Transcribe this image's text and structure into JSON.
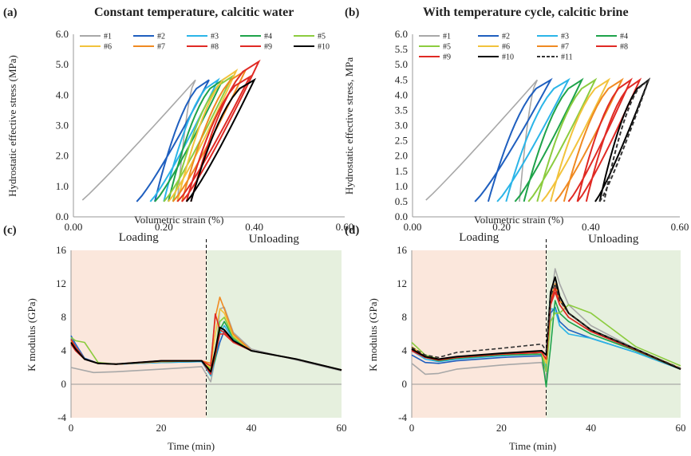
{
  "colors": {
    "1": "#a8a8a8",
    "2": "#1f5fbf",
    "3": "#2bb5e8",
    "4": "#1ea34a",
    "5": "#8ccc3f",
    "6": "#f2c33c",
    "7": "#f08a22",
    "8": "#e02a24",
    "9": "#e02a24",
    "10": "#000000",
    "11": "#333333",
    "loading_bg": "#fbe7dc",
    "unloading_bg": "#e6f0de"
  },
  "chart_data": [
    {
      "panel": "(a)",
      "type": "line",
      "title": "Constant temperature, calcitic water",
      "xlabel": "Volumetric strain (%)",
      "ylabel": "Hydrostatic effective stress (MPa)",
      "xlim": [
        0,
        0.6
      ],
      "ylim": [
        0,
        6
      ],
      "xticks": [
        "0.00",
        "0.20",
        "0.40",
        "0.60"
      ],
      "yticks": [
        "0.0",
        "1.0",
        "2.0",
        "3.0",
        "4.0",
        "5.0",
        "6.0"
      ],
      "legend": [
        "#1",
        "#2",
        "#3",
        "#4",
        "#5",
        "#6",
        "#7",
        "#8",
        "#9",
        "#10"
      ],
      "series": [
        {
          "name": "#1",
          "start": 0.02,
          "peak_strain": 0.27,
          "peak_stress": 4.5,
          "end": 0.23
        },
        {
          "name": "#2",
          "start": 0.14,
          "peak_strain": 0.3,
          "peak_stress": 4.5,
          "end": 0.18
        },
        {
          "name": "#3",
          "start": 0.17,
          "peak_strain": 0.32,
          "peak_stress": 4.5,
          "end": 0.2
        },
        {
          "name": "#4",
          "start": 0.18,
          "peak_strain": 0.33,
          "peak_stress": 4.5,
          "end": 0.21
        },
        {
          "name": "#5",
          "start": 0.2,
          "peak_strain": 0.35,
          "peak_stress": 4.6,
          "end": 0.22
        },
        {
          "name": "#6",
          "start": 0.21,
          "peak_strain": 0.36,
          "peak_stress": 4.8,
          "end": 0.23
        },
        {
          "name": "#7",
          "start": 0.22,
          "peak_strain": 0.38,
          "peak_stress": 4.8,
          "end": 0.24
        },
        {
          "name": "#8",
          "start": 0.23,
          "peak_strain": 0.39,
          "peak_stress": 4.6,
          "end": 0.25
        },
        {
          "name": "#9",
          "start": 0.24,
          "peak_strain": 0.41,
          "peak_stress": 5.1,
          "end": 0.26
        },
        {
          "name": "#10",
          "start": 0.25,
          "peak_strain": 0.4,
          "peak_stress": 4.5,
          "end": 0.26
        }
      ]
    },
    {
      "panel": "(b)",
      "type": "line",
      "title": "With temperature cycle, calcitic brine",
      "xlabel": "Volumetric strain (%)",
      "ylabel": "Hydrostatic effective stress, MPa",
      "xlim": [
        0,
        0.6
      ],
      "ylim": [
        0,
        6
      ],
      "xticks": [
        "0.00",
        "0.20",
        "0.40",
        "0.60"
      ],
      "yticks": [
        "0.0",
        "0.5",
        "1.0",
        "1.5",
        "2.0",
        "2.5",
        "3.0",
        "3.5",
        "4.0",
        "4.5",
        "5.0",
        "5.5",
        "6.0"
      ],
      "legend": [
        "#1",
        "#2",
        "#3",
        "#4",
        "#5",
        "#6",
        "#7",
        "#8",
        "#9",
        "#10",
        "#11"
      ],
      "series": [
        {
          "name": "#1",
          "start": 0.03,
          "peak_strain": 0.28,
          "peak_stress": 4.5,
          "end": 0.24
        },
        {
          "name": "#2",
          "start": 0.14,
          "peak_strain": 0.31,
          "peak_stress": 4.5,
          "end": 0.17
        },
        {
          "name": "#3",
          "start": 0.19,
          "peak_strain": 0.35,
          "peak_stress": 4.5,
          "end": 0.21
        },
        {
          "name": "#4",
          "start": 0.23,
          "peak_strain": 0.38,
          "peak_stress": 4.5,
          "end": 0.25
        },
        {
          "name": "#5",
          "start": 0.26,
          "peak_strain": 0.41,
          "peak_stress": 4.5,
          "end": 0.28
        },
        {
          "name": "#6",
          "start": 0.29,
          "peak_strain": 0.44,
          "peak_stress": 4.5,
          "end": 0.31
        },
        {
          "name": "#7",
          "start": 0.32,
          "peak_strain": 0.47,
          "peak_stress": 4.5,
          "end": 0.34
        },
        {
          "name": "#8",
          "start": 0.35,
          "peak_strain": 0.49,
          "peak_stress": 4.5,
          "end": 0.37
        },
        {
          "name": "#9",
          "start": 0.37,
          "peak_strain": 0.51,
          "peak_stress": 4.5,
          "end": 0.39
        },
        {
          "name": "#10",
          "start": 0.41,
          "peak_strain": 0.53,
          "peak_stress": 4.5,
          "end": 0.42
        },
        {
          "name": "#11",
          "start": 0.42,
          "peak_strain": 0.53,
          "peak_stress": 4.5,
          "end": 0.43,
          "dashed": true
        }
      ]
    },
    {
      "panel": "(c)",
      "type": "line",
      "xlabel": "Time (min)",
      "ylabel": "K modulus (GPa)",
      "xlim": [
        0,
        60
      ],
      "ylim": [
        -4,
        16
      ],
      "xticks": [
        "0",
        "20",
        "40",
        "60"
      ],
      "yticks": [
        "-4",
        "0",
        "4",
        "8",
        "12",
        "16"
      ],
      "regions": {
        "loading": "Loading",
        "unloading": "Unloading",
        "boundary": 30
      },
      "series": [
        {
          "name": "#1",
          "t": [
            0,
            5,
            10,
            20,
            29,
            31,
            32,
            33,
            34,
            36,
            40,
            50,
            60
          ],
          "k": [
            2.0,
            1.4,
            1.5,
            1.8,
            2.1,
            0.3,
            3,
            9,
            9.2,
            6.2,
            4.2,
            2.9,
            1.6
          ]
        },
        {
          "name": "#2",
          "t": [
            0,
            1,
            3,
            6,
            10,
            20,
            29,
            31,
            32,
            33,
            34,
            36,
            40,
            50,
            60
          ],
          "k": [
            5.8,
            4.8,
            3.1,
            2.5,
            2.4,
            2.6,
            2.7,
            1.2,
            3,
            5,
            6.4,
            5.2,
            4.0,
            3.0,
            1.7
          ]
        },
        {
          "name": "#3",
          "t": [
            0,
            1,
            3,
            6,
            10,
            20,
            29,
            31,
            32,
            33,
            34,
            36,
            40,
            50,
            60
          ],
          "k": [
            5.5,
            4.6,
            3.0,
            2.5,
            2.4,
            2.6,
            2.7,
            1.0,
            3,
            6,
            7.0,
            5.4,
            4.0,
            3.0,
            1.7
          ]
        },
        {
          "name": "#4",
          "t": [
            0,
            1,
            3,
            6,
            10,
            20,
            29,
            31,
            32,
            33,
            34,
            36,
            40,
            50,
            60
          ],
          "k": [
            5.3,
            4.4,
            3.0,
            2.5,
            2.4,
            2.7,
            2.8,
            1.5,
            3,
            6.5,
            7.5,
            5.5,
            4.0,
            3.0,
            1.7
          ]
        },
        {
          "name": "#5",
          "t": [
            0,
            1,
            3,
            6,
            10,
            20,
            29,
            31,
            32,
            33,
            34,
            36,
            40,
            50,
            60
          ],
          "k": [
            5.6,
            5.2,
            5.0,
            2.6,
            2.4,
            2.7,
            2.8,
            1.8,
            4,
            7.5,
            8.0,
            5.6,
            4.0,
            3.0,
            1.7
          ]
        },
        {
          "name": "#6",
          "t": [
            0,
            1,
            3,
            6,
            10,
            20,
            29,
            31,
            32,
            33,
            34,
            36,
            40,
            50,
            60
          ],
          "k": [
            5.0,
            4.2,
            3.0,
            2.5,
            2.4,
            2.7,
            2.8,
            2.0,
            6,
            9,
            8.5,
            5.8,
            4.0,
            3.0,
            1.7
          ]
        },
        {
          "name": "#7",
          "t": [
            0,
            1,
            3,
            6,
            10,
            20,
            29,
            31,
            32,
            33,
            34,
            36,
            40,
            50,
            60
          ],
          "k": [
            5.2,
            4.3,
            3.0,
            2.5,
            2.4,
            2.7,
            2.8,
            2.5,
            8,
            10.4,
            9.0,
            6.0,
            4.0,
            3.0,
            1.7
          ]
        },
        {
          "name": "#8",
          "t": [
            0,
            1,
            3,
            6,
            10,
            20,
            29,
            31,
            32,
            33,
            34,
            36,
            40,
            50,
            60
          ],
          "k": [
            5.4,
            4.5,
            3.0,
            2.5,
            2.4,
            2.8,
            2.8,
            2.2,
            8.4,
            6.5,
            6.2,
            5.2,
            4.0,
            3.0,
            1.7
          ]
        },
        {
          "name": "#9",
          "t": [
            0,
            1,
            3,
            6,
            10,
            20,
            29,
            31,
            32,
            33,
            34,
            36,
            40,
            50,
            60
          ],
          "k": [
            4.8,
            4.0,
            3.0,
            2.5,
            2.4,
            2.8,
            2.8,
            1.2,
            3.5,
            6.0,
            6.0,
            5.0,
            4.0,
            3.0,
            1.7
          ]
        },
        {
          "name": "#10",
          "t": [
            0,
            1,
            3,
            6,
            10,
            20,
            29,
            31,
            32,
            33,
            34,
            36,
            40,
            50,
            60
          ],
          "k": [
            5.0,
            4.2,
            3.0,
            2.5,
            2.4,
            2.8,
            2.8,
            1.5,
            4.0,
            6.8,
            6.5,
            5.2,
            4.0,
            3.0,
            1.7
          ]
        }
      ]
    },
    {
      "panel": "(d)",
      "type": "line",
      "xlabel": "Time (min)",
      "ylabel": "K modulus (GPa)",
      "xlim": [
        0,
        60
      ],
      "ylim": [
        -4,
        16
      ],
      "xticks": [
        "0",
        "20",
        "40",
        "60"
      ],
      "yticks": [
        "-4",
        "0",
        "4",
        "8",
        "12",
        "16"
      ],
      "regions": {
        "loading": "Loading",
        "unloading": "Unloading",
        "boundary": 30
      },
      "series": [
        {
          "name": "#1",
          "t": [
            0,
            3,
            6,
            10,
            20,
            29,
            30,
            31,
            32,
            33,
            35,
            40,
            50,
            60
          ],
          "k": [
            2.5,
            1.2,
            1.3,
            1.8,
            2.3,
            2.6,
            0.5,
            10,
            13.8,
            12,
            9.5,
            7,
            4.2,
            1.8
          ]
        },
        {
          "name": "#2",
          "t": [
            0,
            3,
            6,
            10,
            20,
            29,
            30,
            31,
            32,
            33,
            35,
            40,
            50,
            60
          ],
          "k": [
            3.5,
            2.6,
            2.5,
            2.8,
            3.2,
            3.4,
            1.5,
            8.5,
            9.2,
            7.5,
            6.5,
            5.5,
            3.8,
            1.8
          ]
        },
        {
          "name": "#3",
          "t": [
            0,
            3,
            6,
            10,
            20,
            29,
            30,
            31,
            32,
            33,
            35,
            40,
            50,
            60
          ],
          "k": [
            4.0,
            3.0,
            2.7,
            3.0,
            3.4,
            3.6,
            2.0,
            9.0,
            9.0,
            7.0,
            6.0,
            5.5,
            3.8,
            1.8
          ]
        },
        {
          "name": "#4",
          "t": [
            0,
            3,
            6,
            10,
            20,
            29,
            30,
            31,
            32,
            33,
            35,
            40,
            50,
            60
          ],
          "k": [
            4.2,
            3.2,
            2.8,
            3.1,
            3.5,
            3.6,
            -0.3,
            4.5,
            10,
            8.5,
            7.5,
            6.0,
            4.0,
            1.8
          ]
        },
        {
          "name": "#5",
          "t": [
            0,
            3,
            6,
            10,
            20,
            29,
            30,
            31,
            32,
            33,
            35,
            40,
            50,
            60
          ],
          "k": [
            5.0,
            3.5,
            3.0,
            3.2,
            3.6,
            3.8,
            1.5,
            7.5,
            8.5,
            8.5,
            9.5,
            8.5,
            4.5,
            2.2
          ]
        },
        {
          "name": "#6",
          "t": [
            0,
            3,
            6,
            10,
            20,
            29,
            30,
            31,
            32,
            33,
            35,
            40,
            50,
            60
          ],
          "k": [
            4.5,
            3.3,
            3.0,
            3.2,
            3.6,
            3.8,
            2.5,
            9.5,
            11.5,
            10,
            8.5,
            6.5,
            4.2,
            1.9
          ]
        },
        {
          "name": "#7",
          "t": [
            0,
            3,
            6,
            10,
            20,
            29,
            30,
            31,
            32,
            33,
            35,
            40,
            50,
            60
          ],
          "k": [
            4.3,
            3.3,
            2.9,
            3.2,
            3.6,
            3.8,
            3.0,
            10,
            12,
            10,
            8.5,
            6.5,
            4.2,
            1.9
          ]
        },
        {
          "name": "#8",
          "t": [
            0,
            3,
            6,
            10,
            20,
            29,
            30,
            31,
            32,
            33,
            35,
            40,
            50,
            60
          ],
          "k": [
            4.0,
            3.2,
            2.9,
            3.2,
            3.6,
            3.8,
            3.0,
            9.5,
            11,
            9.5,
            8.0,
            6.3,
            4.1,
            1.8
          ]
        },
        {
          "name": "#9",
          "t": [
            0,
            3,
            6,
            10,
            20,
            29,
            30,
            31,
            32,
            33,
            35,
            40,
            50,
            60
          ],
          "k": [
            4.1,
            3.2,
            2.9,
            3.2,
            3.6,
            3.8,
            3.0,
            9.8,
            11.5,
            9.5,
            8.0,
            6.3,
            4.1,
            1.8
          ]
        },
        {
          "name": "#10",
          "t": [
            0,
            3,
            6,
            10,
            20,
            29,
            30,
            31,
            32,
            33,
            35,
            40,
            50,
            60
          ],
          "k": [
            4.2,
            3.3,
            3.0,
            3.3,
            3.7,
            4.0,
            3.5,
            11,
            12.8,
            10.5,
            8.5,
            6.5,
            4.2,
            1.8
          ]
        },
        {
          "name": "#11",
          "t": [
            0,
            3,
            6,
            10,
            20,
            29,
            30,
            31,
            32,
            33,
            35,
            40,
            50,
            60
          ],
          "k": [
            4.4,
            3.5,
            3.2,
            3.8,
            4.3,
            4.8,
            4.0,
            10.5,
            12.0,
            10,
            8.5,
            6.5,
            4.2,
            1.9
          ],
          "dashed": true
        }
      ]
    }
  ]
}
